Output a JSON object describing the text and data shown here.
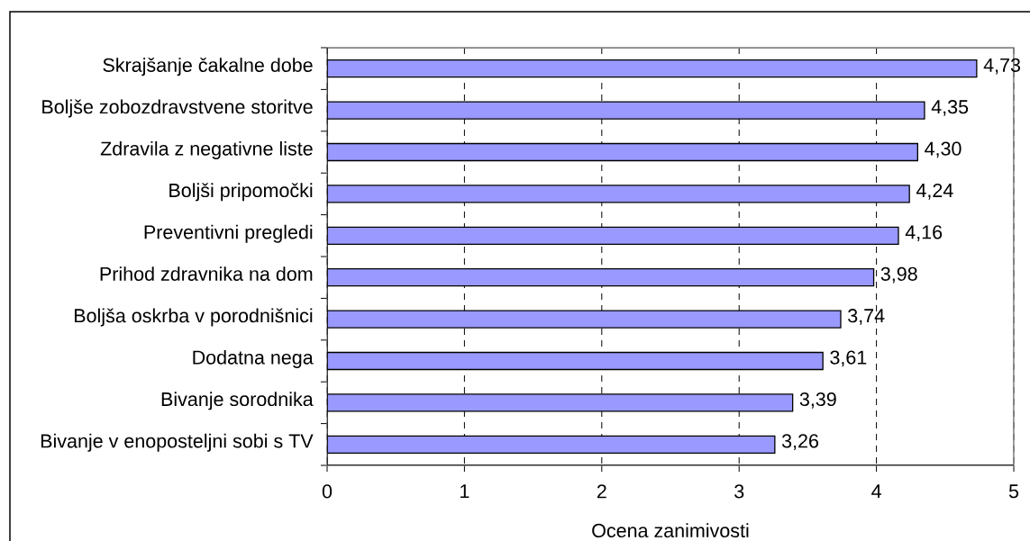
{
  "chart_data": {
    "type": "bar",
    "orientation": "horizontal",
    "categories": [
      "Skrajšanje čakalne dobe",
      "Boljše zobozdravstvene storitve",
      "Zdravila z negativne liste",
      "Boljši pripomočki",
      "Preventivni pregledi",
      "Prihod zdravnika na dom",
      "Boljša oskrba v porodnišnici",
      "Dodatna nega",
      "Bivanje sorodnika",
      "Bivanje v enoposteljni sobi s TV"
    ],
    "values": [
      4.73,
      4.35,
      4.3,
      4.24,
      4.16,
      3.98,
      3.74,
      3.61,
      3.39,
      3.26
    ],
    "value_labels": [
      "4,73",
      "4,35",
      "4,30",
      "4,24",
      "4,16",
      "3,98",
      "3,74",
      "3,61",
      "3,39",
      "3,26"
    ],
    "color": "#9999ff",
    "xlabel": "Ocena zanimivosti",
    "xlim": [
      0,
      5
    ],
    "xticks": [
      0,
      1,
      2,
      3,
      4,
      5
    ],
    "grid": "x"
  }
}
